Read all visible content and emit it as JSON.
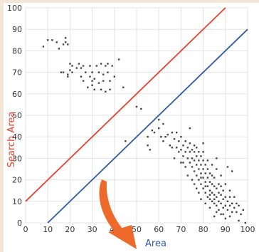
{
  "chart_data": {
    "type": "scatter",
    "xlabel": "Area",
    "ylabel": "Search Area",
    "xlim": [
      0,
      100
    ],
    "ylim": [
      0,
      100
    ],
    "xticks": [
      "0",
      "10",
      "20",
      "30",
      "40",
      "50",
      "60",
      "70",
      "80",
      "90",
      "100"
    ],
    "yticks": [
      "0",
      "10",
      "20",
      "30",
      "40",
      "50",
      "60",
      "70",
      "80",
      "90",
      "100"
    ],
    "grid": true,
    "colors": {
      "points": "#444444",
      "upper_line": "#e8402c",
      "lower_line": "#2f5aa8",
      "xlabel": "#2f5aa8",
      "ylabel": "#e8402c",
      "arrow": "#ee6a2a"
    },
    "lines": [
      {
        "color": "red",
        "points": [
          [
            0,
            10
          ],
          [
            90,
            100
          ]
        ]
      },
      {
        "color": "blue",
        "points": [
          [
            10,
            0
          ],
          [
            100,
            90
          ]
        ]
      }
    ],
    "series": [
      {
        "points": [
          [
            8,
            82
          ],
          [
            10,
            85
          ],
          [
            12,
            85
          ],
          [
            14,
            84
          ],
          [
            15,
            81
          ],
          [
            17,
            83
          ],
          [
            18,
            84
          ],
          [
            18,
            86
          ],
          [
            19,
            83
          ],
          [
            16,
            70
          ],
          [
            17,
            70
          ],
          [
            19,
            69
          ],
          [
            19,
            68
          ],
          [
            20,
            71
          ],
          [
            20,
            74
          ],
          [
            21,
            73
          ],
          [
            21,
            70
          ],
          [
            23,
            72
          ],
          [
            24,
            74
          ],
          [
            25,
            68
          ],
          [
            25,
            72
          ],
          [
            26,
            73
          ],
          [
            26,
            66
          ],
          [
            27,
            70
          ],
          [
            28,
            63
          ],
          [
            29,
            68
          ],
          [
            29,
            73
          ],
          [
            30,
            66
          ],
          [
            30,
            70
          ],
          [
            30,
            64
          ],
          [
            31,
            62
          ],
          [
            31,
            67
          ],
          [
            32,
            73
          ],
          [
            33,
            65
          ],
          [
            33,
            70
          ],
          [
            34,
            62
          ],
          [
            34,
            74
          ],
          [
            35,
            66
          ],
          [
            35,
            69
          ],
          [
            36,
            73
          ],
          [
            36,
            61
          ],
          [
            37,
            74
          ],
          [
            37,
            70
          ],
          [
            38,
            62
          ],
          [
            38,
            66
          ],
          [
            39,
            73
          ],
          [
            40,
            68
          ],
          [
            42,
            76
          ],
          [
            44,
            63
          ],
          [
            50,
            54
          ],
          [
            52,
            53
          ],
          [
            45,
            38
          ],
          [
            55,
            40
          ],
          [
            57,
            43
          ],
          [
            58,
            42
          ],
          [
            60,
            48
          ],
          [
            60,
            44
          ],
          [
            62,
            46
          ],
          [
            63,
            40
          ],
          [
            55,
            36
          ],
          [
            56,
            34
          ],
          [
            61,
            40
          ],
          [
            62,
            38
          ],
          [
            64,
            41
          ],
          [
            65,
            36
          ],
          [
            66,
            42
          ],
          [
            67,
            39
          ],
          [
            68,
            35
          ],
          [
            68,
            42
          ],
          [
            69,
            38
          ],
          [
            70,
            34
          ],
          [
            70,
            40
          ],
          [
            71,
            36
          ],
          [
            71,
            31
          ],
          [
            72,
            33
          ],
          [
            72,
            38
          ],
          [
            73,
            30
          ],
          [
            73,
            35
          ],
          [
            74,
            28
          ],
          [
            74,
            33
          ],
          [
            74,
            37
          ],
          [
            75,
            26
          ],
          [
            75,
            30
          ],
          [
            75,
            34
          ],
          [
            76,
            24
          ],
          [
            76,
            29
          ],
          [
            76,
            33
          ],
          [
            76,
            36
          ],
          [
            77,
            22
          ],
          [
            77,
            27
          ],
          [
            77,
            31
          ],
          [
            77,
            35
          ],
          [
            78,
            20
          ],
          [
            78,
            25
          ],
          [
            78,
            29
          ],
          [
            78,
            33
          ],
          [
            79,
            18
          ],
          [
            79,
            23
          ],
          [
            79,
            27
          ],
          [
            79,
            31
          ],
          [
            80,
            16
          ],
          [
            80,
            21
          ],
          [
            80,
            25
          ],
          [
            80,
            29
          ],
          [
            80,
            33
          ],
          [
            81,
            14
          ],
          [
            81,
            19
          ],
          [
            81,
            23
          ],
          [
            81,
            27
          ],
          [
            82,
            12
          ],
          [
            82,
            17
          ],
          [
            82,
            21
          ],
          [
            82,
            25
          ],
          [
            82,
            29
          ],
          [
            83,
            11
          ],
          [
            83,
            15
          ],
          [
            83,
            19
          ],
          [
            83,
            23
          ],
          [
            84,
            10
          ],
          [
            84,
            14
          ],
          [
            84,
            18
          ],
          [
            84,
            22
          ],
          [
            85,
            9
          ],
          [
            85,
            13
          ],
          [
            85,
            17
          ],
          [
            85,
            21
          ],
          [
            86,
            8
          ],
          [
            86,
            12
          ],
          [
            86,
            16
          ],
          [
            87,
            10
          ],
          [
            87,
            14
          ],
          [
            87,
            18
          ],
          [
            88,
            9
          ],
          [
            88,
            13
          ],
          [
            88,
            17
          ],
          [
            89,
            7
          ],
          [
            89,
            11
          ],
          [
            89,
            15
          ],
          [
            90,
            8
          ],
          [
            90,
            12
          ],
          [
            91,
            6
          ],
          [
            91,
            10
          ],
          [
            92,
            8
          ],
          [
            92,
            12
          ],
          [
            93,
            5
          ],
          [
            93,
            9
          ],
          [
            94,
            7
          ],
          [
            95,
            5
          ],
          [
            96,
            8
          ],
          [
            98,
            6
          ],
          [
            85,
            3
          ],
          [
            88,
            4
          ],
          [
            90,
            2
          ],
          [
            96,
            1
          ],
          [
            99,
            0
          ],
          [
            91,
            26
          ],
          [
            93,
            24
          ],
          [
            86,
            30
          ],
          [
            80,
            37
          ],
          [
            74,
            44
          ],
          [
            76,
            18
          ],
          [
            78,
            14
          ],
          [
            79,
            11
          ],
          [
            81,
            9
          ],
          [
            83,
            7
          ],
          [
            86,
            5
          ],
          [
            72,
            26
          ],
          [
            70,
            28
          ],
          [
            73,
            22
          ],
          [
            75,
            20
          ],
          [
            84,
            27
          ],
          [
            86,
            25
          ],
          [
            88,
            22
          ],
          [
            90,
            18
          ],
          [
            92,
            15
          ],
          [
            94,
            12
          ],
          [
            95,
            9
          ],
          [
            97,
            4
          ],
          [
            66,
            35
          ],
          [
            67,
            30
          ],
          [
            69,
            33
          ],
          [
            71,
            28
          ],
          [
            77,
            16
          ],
          [
            79,
            21
          ],
          [
            81,
            17
          ],
          [
            83,
            13
          ],
          [
            85,
            11
          ],
          [
            87,
            6
          ],
          [
            89,
            4
          ],
          [
            92,
            3
          ]
        ]
      }
    ]
  }
}
